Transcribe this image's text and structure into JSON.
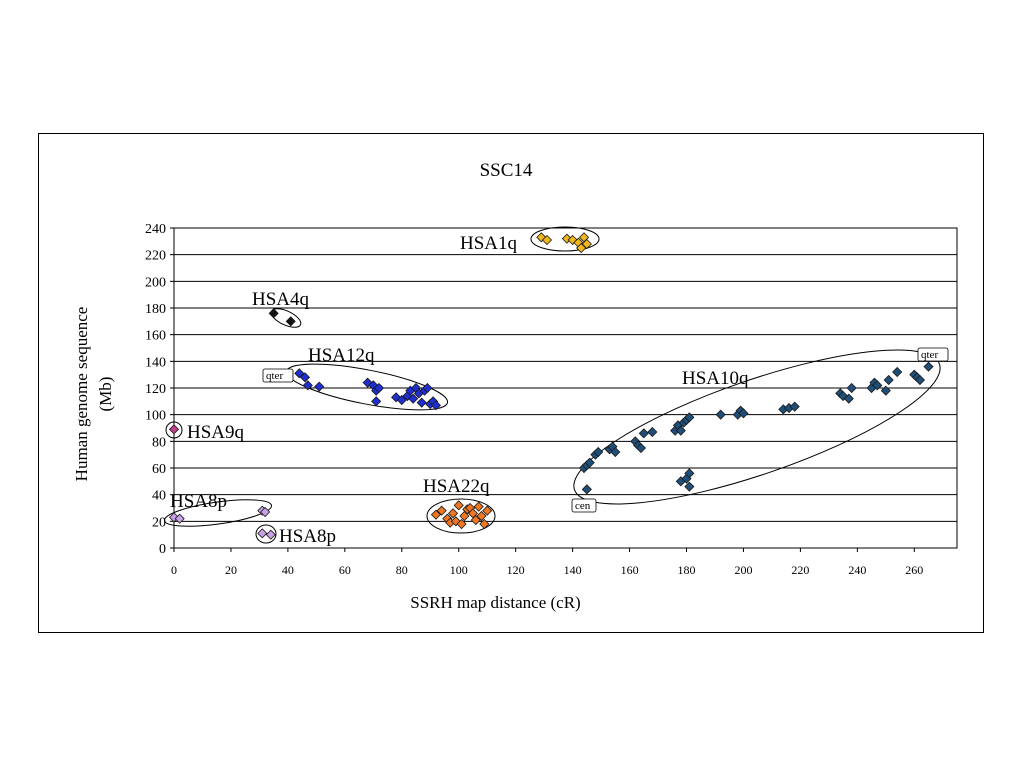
{
  "chart_data": {
    "type": "scatter",
    "title": "SSC14",
    "xlabel": "SSRH map distance (cR)",
    "ylabel_lines": [
      "Human genome sequence",
      "(Mb)"
    ],
    "xlim": [
      0,
      275
    ],
    "ylim": [
      0,
      240
    ],
    "xticks": [
      0,
      20,
      40,
      60,
      80,
      100,
      120,
      140,
      160,
      180,
      200,
      220,
      240,
      260
    ],
    "yticks": [
      0,
      20,
      40,
      60,
      80,
      100,
      120,
      140,
      160,
      180,
      200,
      220,
      240
    ],
    "grid": "horizontal",
    "series": [
      {
        "name": "HSA1q",
        "color": "#F2B61E",
        "points": [
          [
            129,
            233
          ],
          [
            131,
            231
          ],
          [
            138,
            232
          ],
          [
            140,
            231
          ],
          [
            142,
            229
          ],
          [
            144,
            233
          ],
          [
            145,
            228
          ],
          [
            143,
            225
          ]
        ]
      },
      {
        "name": "HSA4q",
        "color": "#111111",
        "points": [
          [
            35,
            176
          ],
          [
            41,
            170
          ]
        ]
      },
      {
        "name": "HSA12q",
        "color": "#1F2FD0",
        "points": [
          [
            44,
            131
          ],
          [
            46,
            128
          ],
          [
            47,
            122
          ],
          [
            51,
            121
          ],
          [
            68,
            124
          ],
          [
            70,
            122
          ],
          [
            71,
            118
          ],
          [
            71,
            110
          ],
          [
            72,
            120
          ],
          [
            78,
            113
          ],
          [
            80,
            111
          ],
          [
            82,
            114
          ],
          [
            83,
            118
          ],
          [
            84,
            112
          ],
          [
            85,
            120
          ],
          [
            86,
            116
          ],
          [
            87,
            109
          ],
          [
            88,
            118
          ],
          [
            89,
            120
          ],
          [
            90,
            108
          ],
          [
            91,
            110
          ],
          [
            92,
            107
          ]
        ]
      },
      {
        "name": "HSA9q",
        "color": "#C23D8A",
        "points": [
          [
            0,
            89
          ]
        ]
      },
      {
        "name": "HSA8p",
        "color": "#C7A0E6",
        "points": [
          [
            0,
            23
          ],
          [
            2,
            22
          ],
          [
            31,
            28
          ],
          [
            32,
            27
          ]
        ]
      },
      {
        "name": "HSA8p",
        "color": "#C7A0E6",
        "points": [
          [
            31,
            11
          ],
          [
            34,
            10
          ]
        ]
      },
      {
        "name": "HSA22q",
        "color": "#F07722",
        "points": [
          [
            92,
            25
          ],
          [
            94,
            28
          ],
          [
            96,
            22
          ],
          [
            97,
            19
          ],
          [
            98,
            26
          ],
          [
            99,
            20
          ],
          [
            100,
            32
          ],
          [
            101,
            18
          ],
          [
            102,
            24
          ],
          [
            103,
            29
          ],
          [
            104,
            30
          ],
          [
            105,
            26
          ],
          [
            106,
            21
          ],
          [
            107,
            31
          ],
          [
            108,
            24
          ],
          [
            109,
            18
          ],
          [
            110,
            28
          ]
        ]
      },
      {
        "name": "HSA10q",
        "color": "#1F4E79",
        "points": [
          [
            144,
            60
          ],
          [
            145,
            62
          ],
          [
            145,
            44
          ],
          [
            146,
            64
          ],
          [
            148,
            70
          ],
          [
            149,
            72
          ],
          [
            153,
            74
          ],
          [
            154,
            76
          ],
          [
            155,
            72
          ],
          [
            162,
            80
          ],
          [
            163,
            77
          ],
          [
            164,
            75
          ],
          [
            165,
            86
          ],
          [
            168,
            87
          ],
          [
            176,
            88
          ],
          [
            177,
            92
          ],
          [
            178,
            88
          ],
          [
            179,
            94
          ],
          [
            180,
            96
          ],
          [
            181,
            98
          ],
          [
            178,
            50
          ],
          [
            180,
            52
          ],
          [
            181,
            56
          ],
          [
            181,
            46
          ],
          [
            192,
            100
          ],
          [
            198,
            100
          ],
          [
            199,
            103
          ],
          [
            200,
            101
          ],
          [
            214,
            104
          ],
          [
            216,
            105
          ],
          [
            218,
            106
          ],
          [
            234,
            116
          ],
          [
            235,
            114
          ],
          [
            237,
            112
          ],
          [
            238,
            120
          ],
          [
            245,
            120
          ],
          [
            246,
            124
          ],
          [
            247,
            122
          ],
          [
            250,
            118
          ],
          [
            251,
            126
          ],
          [
            254,
            132
          ],
          [
            260,
            130
          ],
          [
            261,
            128
          ],
          [
            262,
            126
          ],
          [
            265,
            136
          ]
        ]
      }
    ],
    "annotations": [
      {
        "text": "HSA1q"
      },
      {
        "text": "HSA4q"
      },
      {
        "text": "HSA12q"
      },
      {
        "text": "qter"
      },
      {
        "text": "HSA9q"
      },
      {
        "text": "HSA10q"
      },
      {
        "text": "qter"
      },
      {
        "text": "cen"
      },
      {
        "text": "HSA8p"
      },
      {
        "text": "HSA8p"
      },
      {
        "text": "HSA22q"
      }
    ]
  }
}
